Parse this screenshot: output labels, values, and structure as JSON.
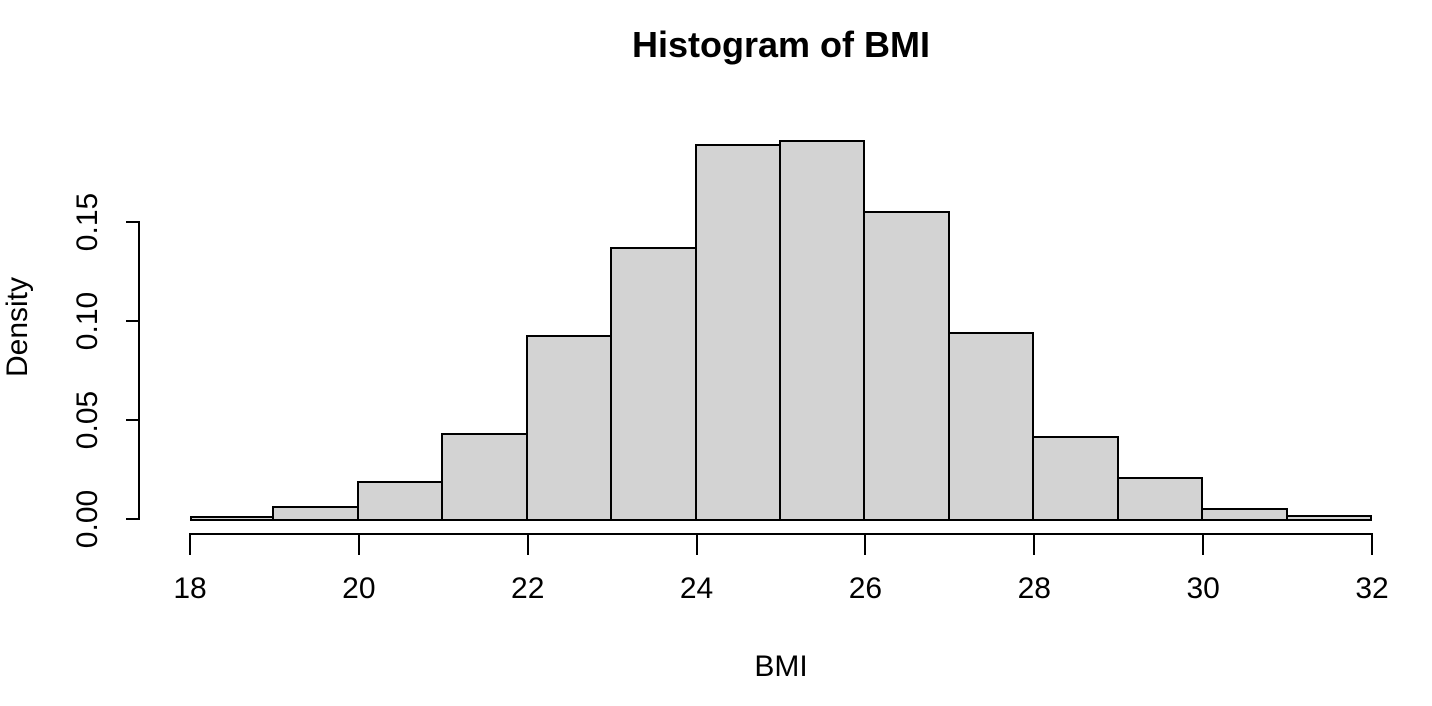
{
  "figure": {
    "title": "Histogram of BMI"
  },
  "chart_data": {
    "type": "bar",
    "subtype": "histogram",
    "title": "Histogram of BMI",
    "xlabel": "BMI",
    "ylabel": "Density",
    "bin_width": 1,
    "bin_edges": [
      18,
      19,
      20,
      21,
      22,
      23,
      24,
      25,
      26,
      27,
      28,
      29,
      30,
      31,
      32
    ],
    "densities": [
      0.0015,
      0.0065,
      0.0192,
      0.0434,
      0.0929,
      0.1374,
      0.1894,
      0.1914,
      0.1556,
      0.0944,
      0.0419,
      0.0212,
      0.0056,
      0.0018
    ],
    "x_ticks": [
      18,
      20,
      22,
      24,
      26,
      28,
      30,
      32
    ],
    "y_ticks": [
      0,
      0.05,
      0.1,
      0.15
    ],
    "y_tick_labels": [
      "0.00",
      "0.05",
      "0.10",
      "0.15"
    ],
    "xlim": [
      18,
      32
    ],
    "ylim": [
      0,
      0.15
    ],
    "grid": false,
    "legend": "none",
    "bar_fill": "#d3d3d3",
    "bar_border": "#000000",
    "axis_color": "#000000",
    "background": "#ffffff"
  }
}
